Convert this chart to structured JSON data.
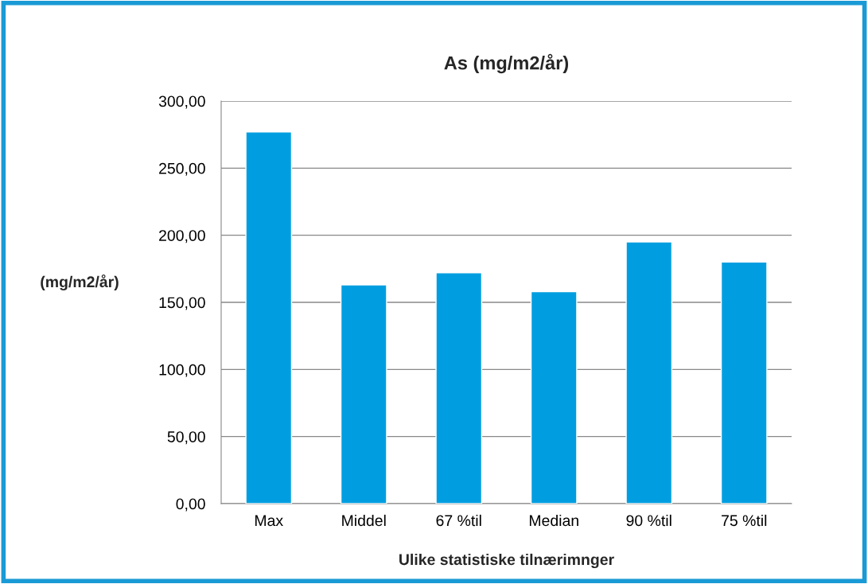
{
  "chart_data": {
    "type": "bar",
    "title": "As (mg/m2/år)",
    "xlabel": "Ulike statistiske tilnærimnger",
    "ylabel": "(mg/m2/år)",
    "categories": [
      "Max",
      "Middel",
      "67 %til",
      "Median",
      "90 %til",
      "75 %til"
    ],
    "values": [
      277,
      163,
      172,
      158,
      195,
      180
    ],
    "color": "#009ee0",
    "ylim": [
      0,
      300
    ],
    "yticks": [
      {
        "value": 0,
        "label": "0,00"
      },
      {
        "value": 50,
        "label": "50,00"
      },
      {
        "value": 100,
        "label": "100,00"
      },
      {
        "value": 150,
        "label": "150,00"
      },
      {
        "value": 200,
        "label": "200,00"
      },
      {
        "value": 250,
        "label": "250,00"
      },
      {
        "value": 300,
        "label": "300,00"
      }
    ],
    "grid": "y",
    "legend": false
  }
}
